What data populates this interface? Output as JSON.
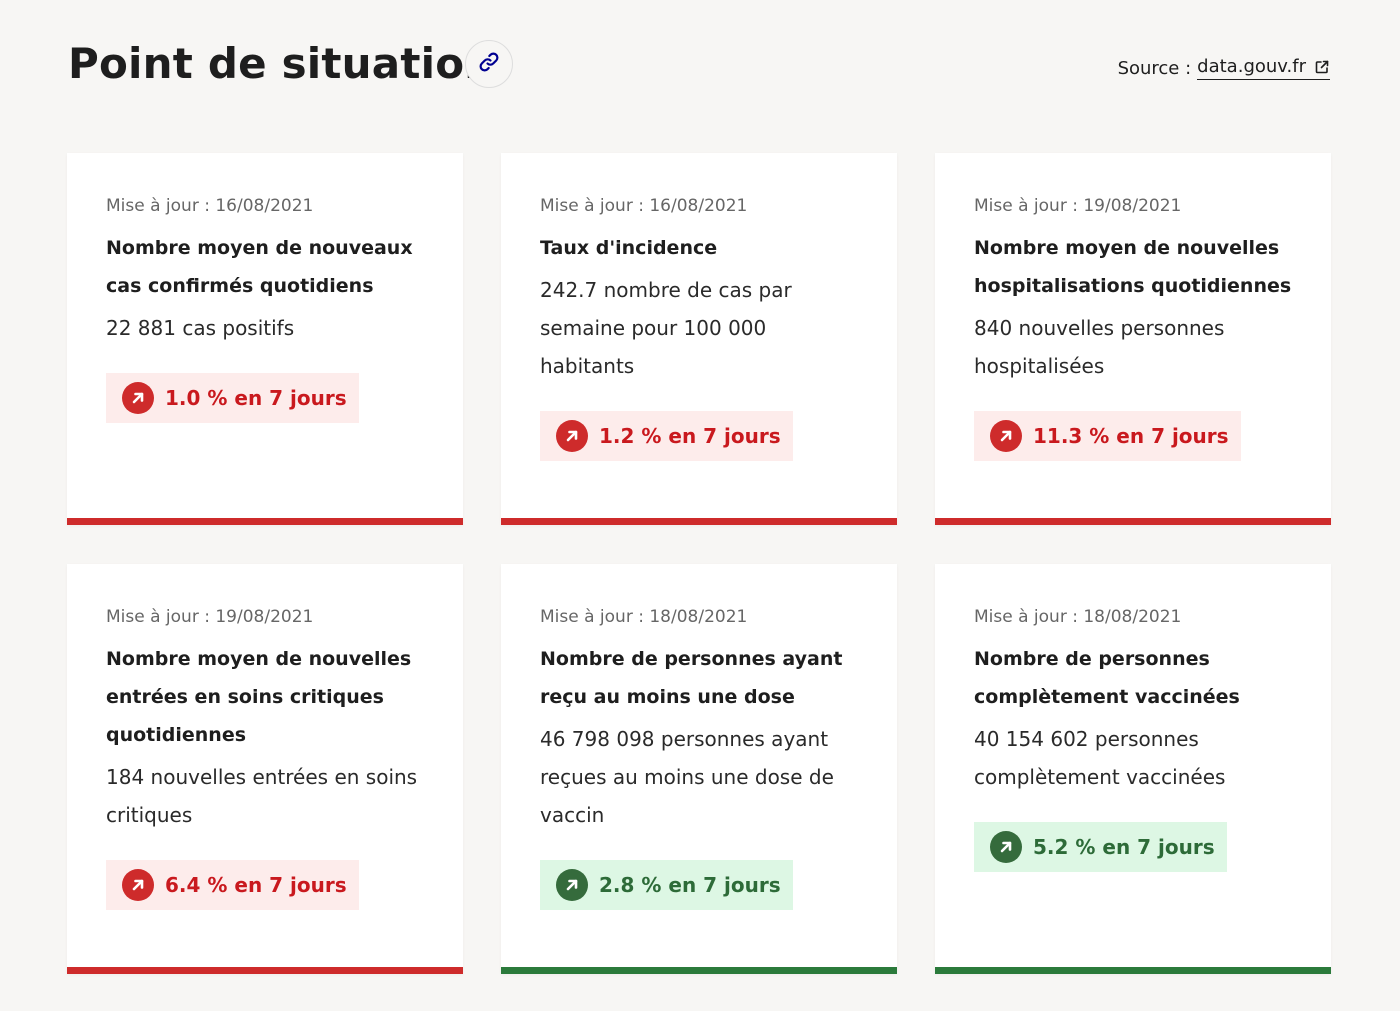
{
  "header": {
    "title": "Point de situation",
    "link_icon": "link-icon",
    "source_label": "Source :",
    "source_link": "data.gouv.fr",
    "source_link_icon": "external-link-icon"
  },
  "colors": {
    "increase_bad": "#ce2b2b",
    "increase_good": "#2b7a3b",
    "bad_badge_bg": "#fdeceb",
    "good_badge_bg": "#ddf7e4"
  },
  "cards": [
    {
      "updated": "Mise à jour : 16/08/2021",
      "title": "Nombre moyen de nouveaux cas confirmés quotidiens",
      "value": "22 881 cas positifs",
      "trend": "1.0 % en 7 jours",
      "trend_status": "bad",
      "trend_icon": "arrow-up-right-icon"
    },
    {
      "updated": "Mise à jour : 16/08/2021",
      "title": "Taux d'incidence",
      "value": "242.7 nombre de cas par semaine pour 100 000 habitants",
      "trend": "1.2 % en 7 jours",
      "trend_status": "bad",
      "trend_icon": "arrow-up-right-icon"
    },
    {
      "updated": "Mise à jour : 19/08/2021",
      "title": "Nombre moyen de nouvelles hospitalisations quotidiennes",
      "value": "840 nouvelles personnes hospitalisées",
      "trend": "11.3 % en 7 jours",
      "trend_status": "bad",
      "trend_icon": "arrow-up-right-icon"
    },
    {
      "updated": "Mise à jour : 19/08/2021",
      "title": "Nombre moyen de nouvelles entrées en soins critiques quotidiennes",
      "value": "184 nouvelles entrées en soins critiques",
      "trend": "6.4 % en 7 jours",
      "trend_status": "bad",
      "trend_icon": "arrow-up-right-icon"
    },
    {
      "updated": "Mise à jour : 18/08/2021",
      "title": "Nombre de personnes ayant reçu au moins une dose",
      "value": "46 798 098 personnes ayant reçues au moins une dose de vaccin",
      "trend": "2.8 % en 7 jours",
      "trend_status": "good",
      "trend_icon": "arrow-up-right-icon"
    },
    {
      "updated": "Mise à jour : 18/08/2021",
      "title": "Nombre de personnes complètement vaccinées",
      "value": "40 154 602 personnes complètement vaccinées",
      "trend": "5.2 % en 7 jours",
      "trend_status": "good",
      "trend_icon": "arrow-up-right-icon"
    }
  ]
}
